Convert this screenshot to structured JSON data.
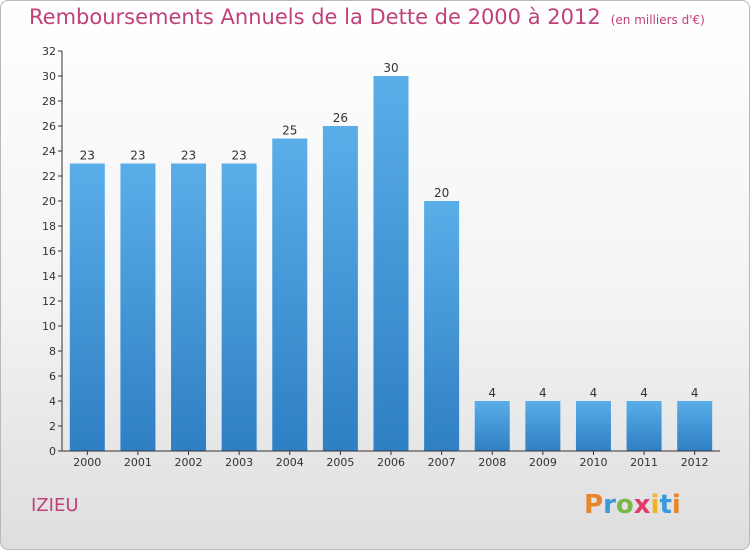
{
  "header": {
    "title": "Remboursements Annuels de la Dette de 2000 à 2012",
    "subtitle": "(en milliers d'€)"
  },
  "footer": {
    "commune": "IZIEU",
    "brand": "Proxiti"
  },
  "colors": {
    "title": "#c0407a",
    "bar_top": "#5aaee8",
    "bar_bottom": "#2e7fc4",
    "axis": "#333333"
  },
  "chart_data": {
    "type": "bar",
    "categories": [
      "2000",
      "2001",
      "2002",
      "2003",
      "2004",
      "2005",
      "2006",
      "2007",
      "2008",
      "2009",
      "2010",
      "2011",
      "2012"
    ],
    "values": [
      23,
      23,
      23,
      23,
      25,
      26,
      30,
      20,
      4,
      4,
      4,
      4,
      4
    ],
    "title": "Remboursements Annuels de la Dette de 2000 à 2012",
    "xlabel": "",
    "ylabel": "",
    "ylim": [
      0,
      32
    ],
    "yticks": [
      0,
      2,
      4,
      6,
      8,
      10,
      12,
      14,
      16,
      18,
      20,
      22,
      24,
      26,
      28,
      30,
      32
    ],
    "grid": false,
    "legend": "none"
  }
}
